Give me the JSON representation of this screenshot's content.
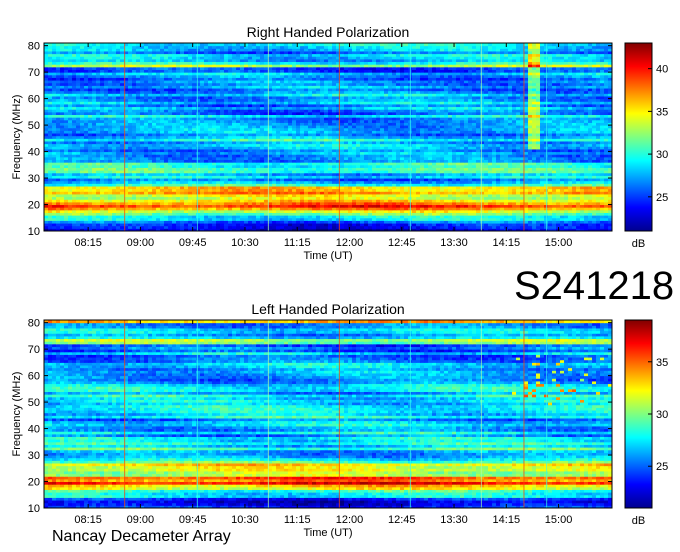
{
  "observation_id": "S241218",
  "footer": "Nancay Decameter Array",
  "chart_data": [
    {
      "type": "heatmap",
      "title": "Right Handed Polarization",
      "xlabel": "Time (UT)",
      "ylabel": "Frequency (MHz)",
      "xtick_labels": [
        "08:15",
        "09:00",
        "09:45",
        "10:30",
        "11:15",
        "12:00",
        "12:45",
        "13:30",
        "14:15",
        "15:00"
      ],
      "xtick_minutes": [
        495,
        540,
        585,
        630,
        675,
        720,
        765,
        810,
        855,
        900
      ],
      "xlim_minutes": [
        457,
        946
      ],
      "ylim": [
        10,
        81
      ],
      "yticks": [
        10,
        20,
        30,
        40,
        50,
        60,
        70,
        80
      ],
      "colorbar": {
        "label": "dB",
        "range": [
          21,
          43
        ],
        "ticks": [
          25,
          30,
          35,
          40
        ]
      }
    },
    {
      "type": "heatmap",
      "title": "Left Handed Polarization",
      "xlabel": "Time (UT)",
      "ylabel": "Frequency (MHz)",
      "xtick_labels": [
        "08:15",
        "09:00",
        "09:45",
        "10:30",
        "11:15",
        "12:00",
        "12:45",
        "13:30",
        "14:15",
        "15:00"
      ],
      "xtick_minutes": [
        495,
        540,
        585,
        630,
        675,
        720,
        765,
        810,
        855,
        900
      ],
      "xlim_minutes": [
        457,
        946
      ],
      "ylim": [
        10,
        81
      ],
      "yticks": [
        10,
        20,
        30,
        40,
        50,
        60,
        70,
        80
      ],
      "colorbar": {
        "label": "dB",
        "range": [
          21,
          39
        ],
        "ticks": [
          25,
          30,
          35
        ]
      }
    }
  ]
}
